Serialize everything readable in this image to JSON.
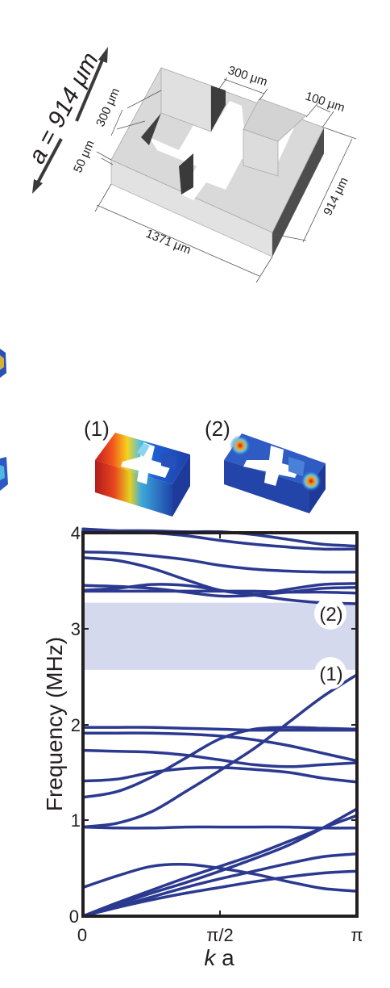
{
  "unit_cell": {
    "lattice_label": "a = 914 μm",
    "dim_300_top": "300 μm",
    "dim_300_left": "300 μm",
    "dim_100": "100 μm",
    "dim_50": "50 μm",
    "dim_914": "914 μm",
    "dim_1371": "1371 μm"
  },
  "modes": [
    {
      "label": "(1)"
    },
    {
      "label": "(2)"
    }
  ],
  "chart_data": {
    "type": "line",
    "ylabel": "Frequency (MHz)",
    "xlabel": "k a",
    "xlabel_k": "k",
    "xlabel_a": "a",
    "x_ticks": [
      "0",
      "π/2",
      "π"
    ],
    "y_ticks": [
      "0",
      "1",
      "2",
      "3",
      "4"
    ],
    "xlim": [
      0,
      3.1416
    ],
    "ylim": [
      0,
      4
    ],
    "band_gap": [
      2.57,
      3.27
    ],
    "band_color": "#d5d9ee",
    "line_color": "#2b3990",
    "x": [
      0,
      0.3927,
      0.7854,
      1.1781,
      1.5708,
      1.9635,
      2.3562,
      2.7489,
      3.1416
    ],
    "series": [
      {
        "values": [
          0,
          0.14,
          0.27,
          0.4,
          0.52,
          0.64,
          0.78,
          0.92,
          1.05
        ]
      },
      {
        "values": [
          0,
          0.12,
          0.24,
          0.35,
          0.47,
          0.6,
          0.74,
          0.92,
          1.12
        ]
      },
      {
        "values": [
          0,
          0.1,
          0.2,
          0.3,
          0.39,
          0.47,
          0.55,
          0.62,
          0.65
        ]
      },
      {
        "values": [
          0,
          0.09,
          0.17,
          0.24,
          0.3,
          0.36,
          0.41,
          0.45,
          0.47
        ]
      },
      {
        "values": [
          0.3,
          0.42,
          0.52,
          0.54,
          0.5,
          0.44,
          0.36,
          0.29,
          0.26
        ]
      },
      {
        "values": [
          0.93,
          0.92,
          0.92,
          0.93,
          0.93,
          0.93,
          0.93,
          0.92,
          0.92
        ]
      },
      {
        "values": [
          0.93,
          0.97,
          1.09,
          1.3,
          1.52,
          1.75,
          2.02,
          2.29,
          2.52
        ]
      },
      {
        "values": [
          1.24,
          1.3,
          1.45,
          1.65,
          1.85,
          1.95,
          1.97,
          1.96,
          1.95
        ]
      },
      {
        "values": [
          1.41,
          1.43,
          1.5,
          1.54,
          1.55,
          1.53,
          1.5,
          1.44,
          1.4
        ]
      },
      {
        "values": [
          1.73,
          1.72,
          1.71,
          1.68,
          1.63,
          1.58,
          1.56,
          1.58,
          1.6
        ]
      },
      {
        "values": [
          1.91,
          1.91,
          1.91,
          1.9,
          1.88,
          1.84,
          1.78,
          1.7,
          1.62
        ]
      },
      {
        "values": [
          1.97,
          1.97,
          1.97,
          1.96,
          1.95,
          1.94,
          1.94,
          1.94,
          1.94
        ]
      },
      {
        "values": [
          3.4,
          3.42,
          3.46,
          3.45,
          3.4,
          3.35,
          3.3,
          3.27,
          3.26
        ]
      },
      {
        "values": [
          3.45,
          3.44,
          3.42,
          3.38,
          3.34,
          3.35,
          3.41,
          3.46,
          3.47
        ]
      },
      {
        "values": [
          3.74,
          3.71,
          3.63,
          3.51,
          3.4,
          3.36,
          3.38,
          3.42,
          3.43
        ]
      },
      {
        "values": [
          3.8,
          3.79,
          3.76,
          3.72,
          3.66,
          3.62,
          3.6,
          3.59,
          3.59
        ]
      },
      {
        "values": [
          4.04,
          4.02,
          4.0,
          3.97,
          3.92,
          3.88,
          3.85,
          3.83,
          3.83
        ]
      },
      {
        "values": [
          4.02,
          4.02,
          4.02,
          4.01,
          4.01,
          3.98,
          3.93,
          3.88,
          3.86
        ]
      },
      {
        "values": [
          3.39,
          3.39,
          3.39,
          3.39,
          3.39,
          3.39,
          3.38,
          3.38,
          3.37
        ]
      }
    ]
  }
}
